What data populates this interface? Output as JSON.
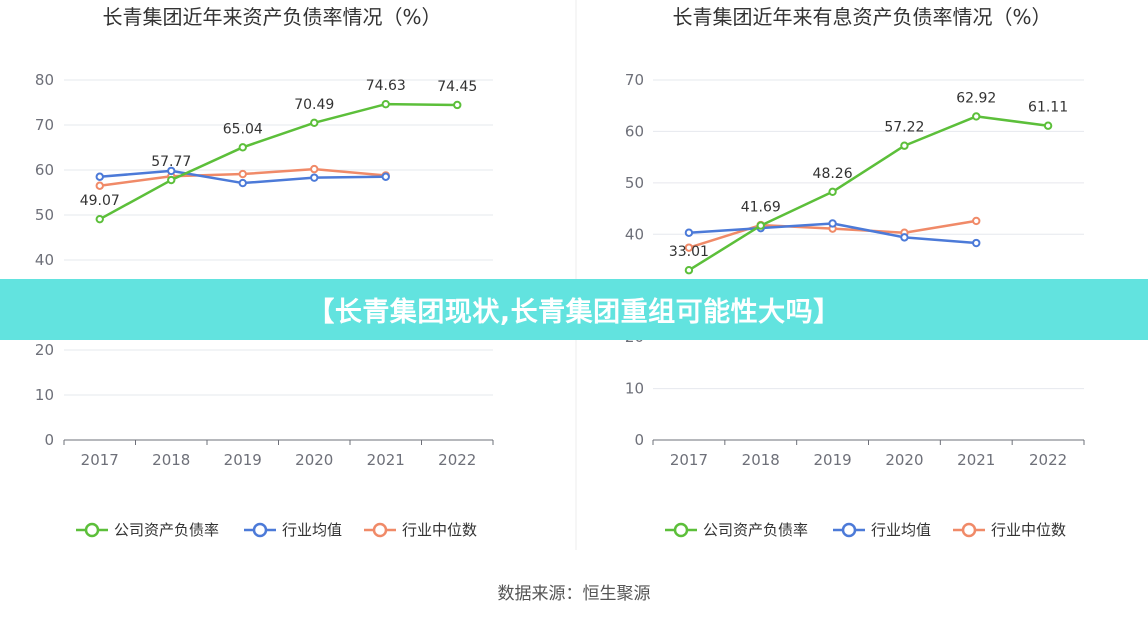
{
  "banner": {
    "text": "【长青集团现状,长青集团重组可能性大吗】"
  },
  "source": "数据来源：恒生聚源",
  "colors": {
    "company": "#5cbf3a",
    "mean": "#4c7ad8",
    "median": "#f08a68"
  },
  "chart_data": [
    {
      "type": "line",
      "title": "长青集团近年来资产负债率情况（%）",
      "x": [
        "2017",
        "2018",
        "2019",
        "2020",
        "2021",
        "2022"
      ],
      "ylim": [
        0,
        80
      ],
      "yticks": [
        0,
        10,
        20,
        30,
        40,
        50,
        60,
        70,
        80
      ],
      "grid": true,
      "legend_position": "bottom",
      "series": [
        {
          "name": "公司资产负债率",
          "values": [
            49.07,
            57.77,
            65.04,
            70.49,
            74.63,
            74.45
          ],
          "labels": [
            "49.07",
            "57.77",
            "65.04",
            "70.49",
            "74.63",
            "74.45"
          ]
        },
        {
          "name": "行业均值",
          "values": [
            58.5,
            59.8,
            57.1,
            58.3,
            58.5,
            null
          ]
        },
        {
          "name": "行业中位数",
          "values": [
            56.5,
            58.6,
            59.1,
            60.2,
            58.8,
            null
          ]
        }
      ]
    },
    {
      "type": "line",
      "title": "长青集团近年来有息资产负债率情况（%）",
      "x": [
        "2017",
        "2018",
        "2019",
        "2020",
        "2021",
        "2022"
      ],
      "ylim": [
        0,
        70
      ],
      "yticks": [
        0,
        10,
        20,
        30,
        40,
        50,
        60,
        70
      ],
      "grid": true,
      "legend_position": "bottom",
      "series": [
        {
          "name": "公司资产负债率",
          "values": [
            33.01,
            41.69,
            48.26,
            57.22,
            62.92,
            61.11
          ],
          "labels": [
            "33.01",
            "41.69",
            "48.26",
            "57.22",
            "62.92",
            "61.11"
          ]
        },
        {
          "name": "行业均值",
          "values": [
            40.3,
            41.2,
            42.1,
            39.4,
            38.3,
            null
          ]
        },
        {
          "name": "行业中位数",
          "values": [
            37.4,
            41.8,
            41.1,
            40.3,
            42.6,
            null
          ]
        }
      ]
    }
  ]
}
